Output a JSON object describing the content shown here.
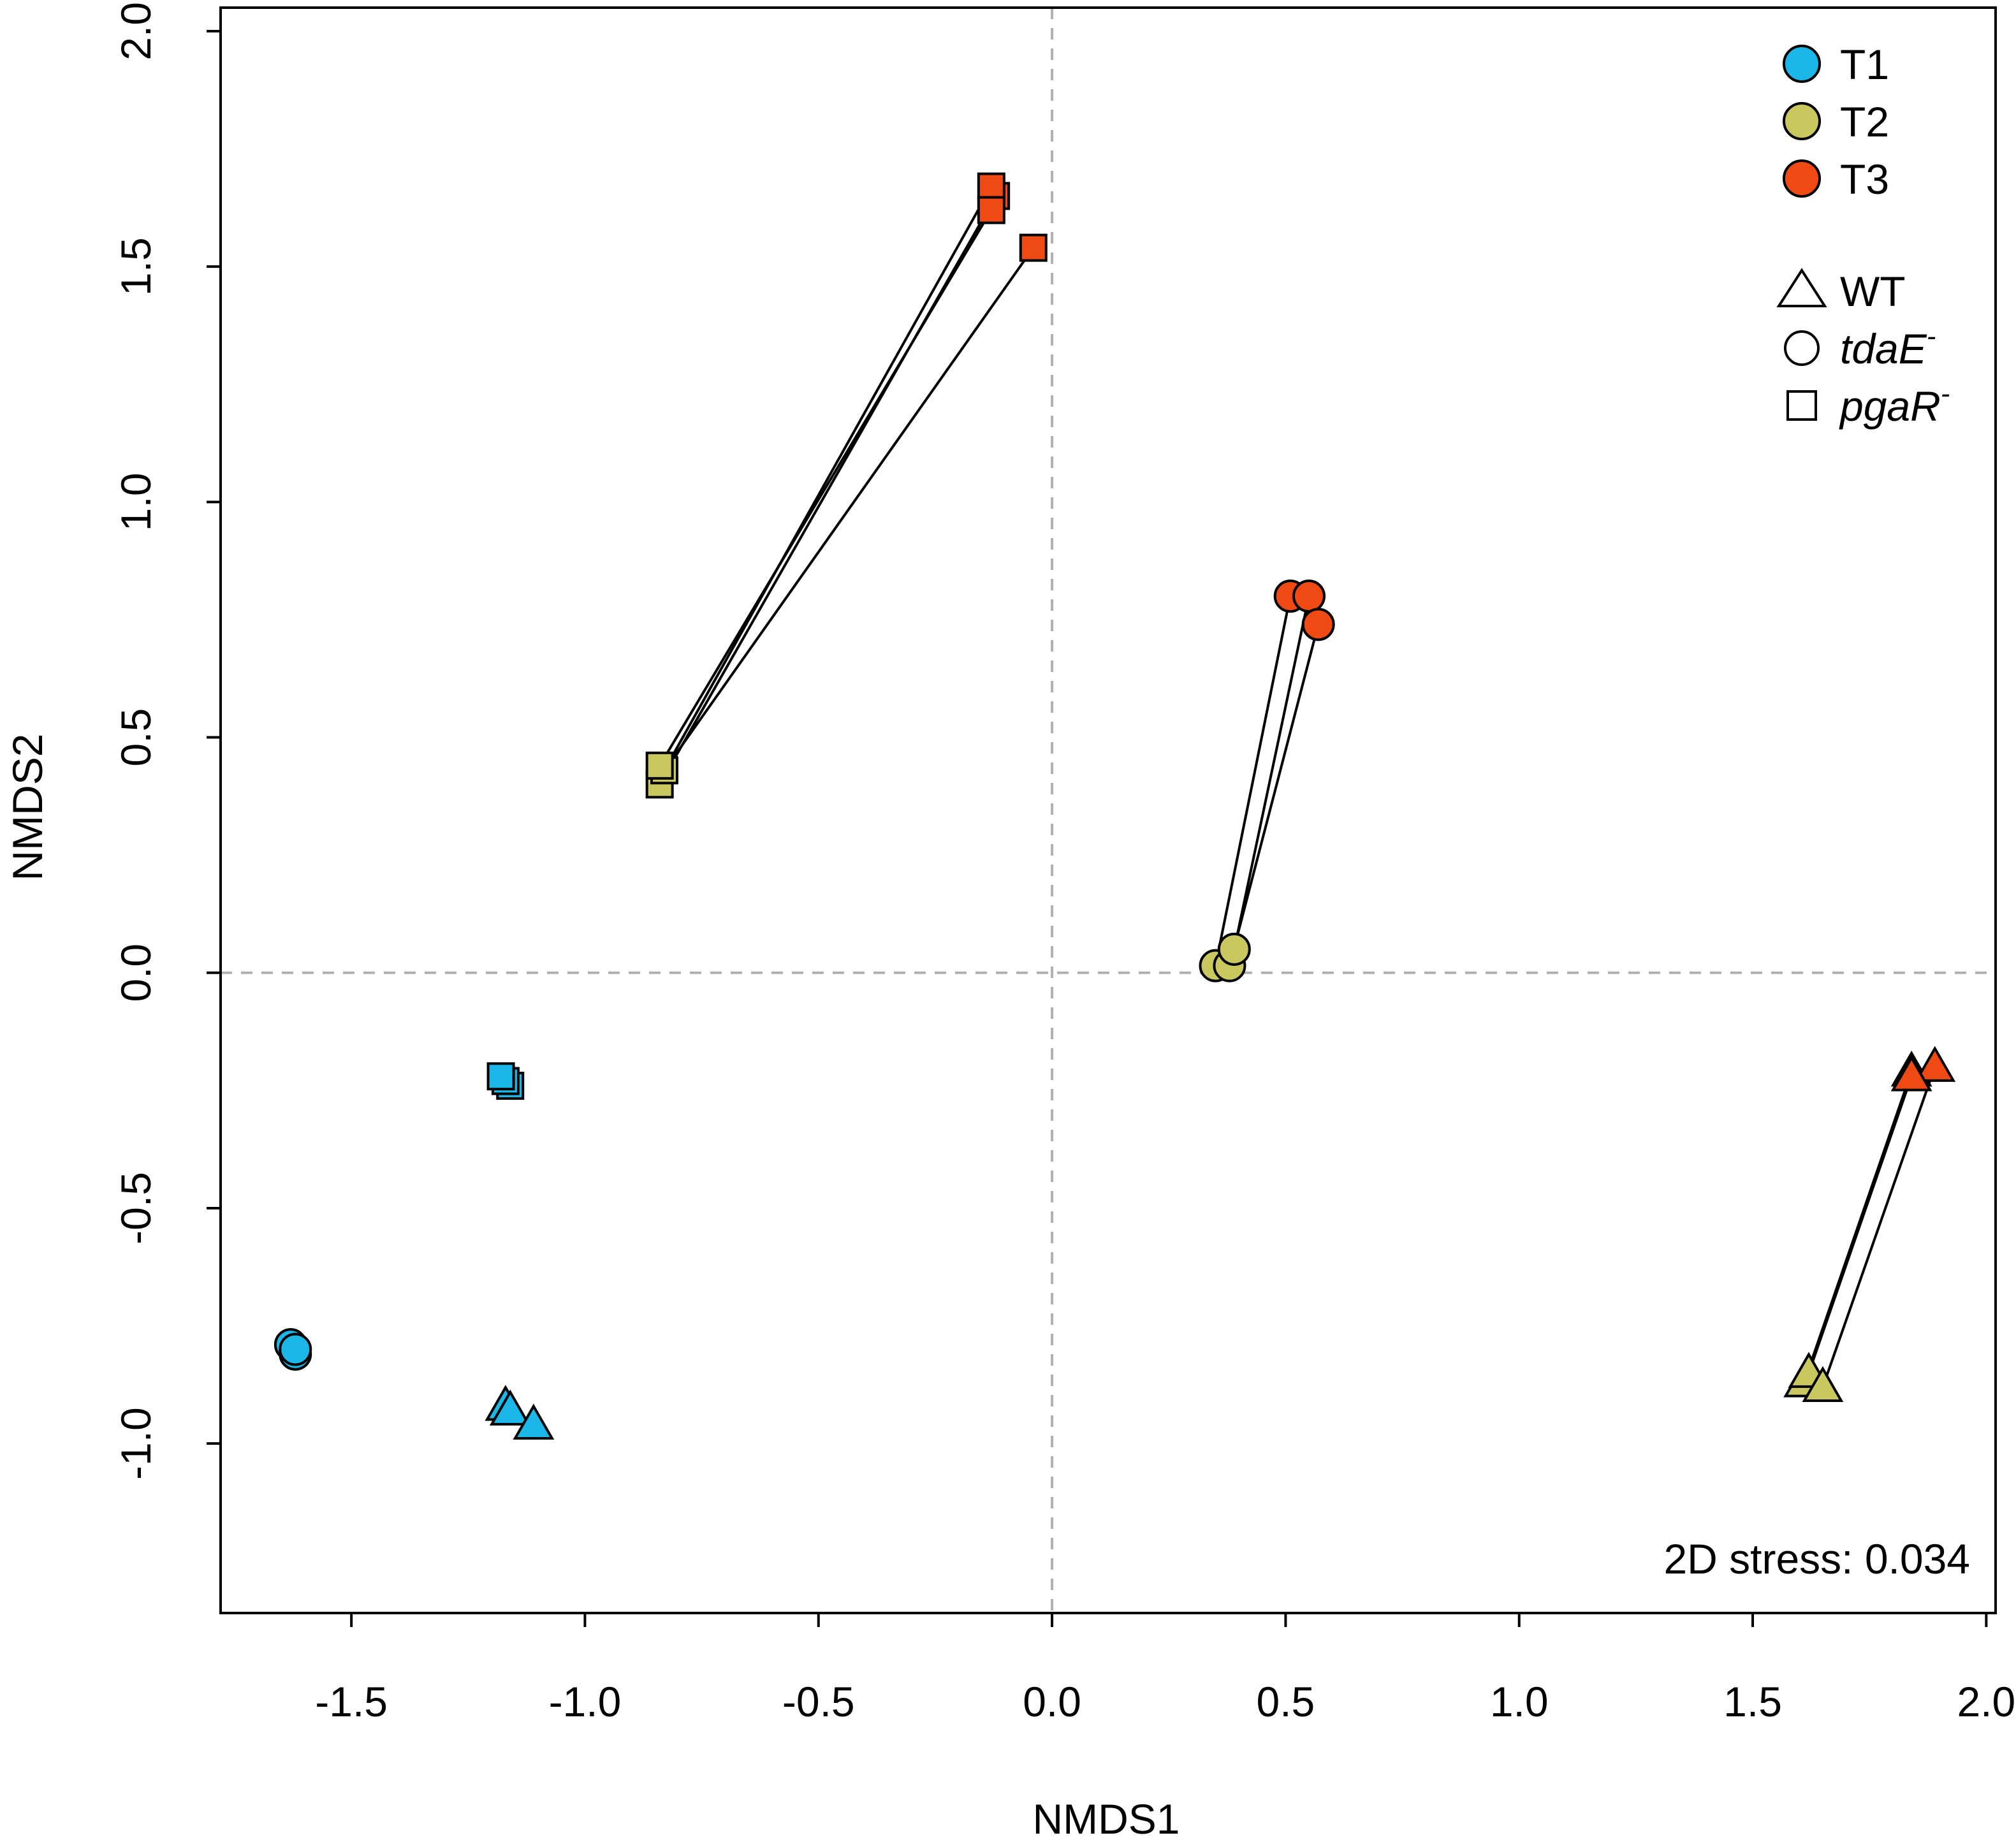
{
  "chart_data": {
    "type": "scatter",
    "title": "",
    "xlabel": "NMDS1",
    "ylabel": "NMDS2",
    "xlim": [
      -1.78,
      2.02
    ],
    "ylim": [
      -1.36,
      2.05
    ],
    "x_ticks": [
      -1.5,
      -1.0,
      -0.5,
      0.0,
      0.5,
      1.0,
      1.5,
      2.0
    ],
    "x_tick_labels": [
      "-1.5",
      "-1.0",
      "-0.5",
      "0.0",
      "0.5",
      "1.0",
      "1.5",
      "2.0"
    ],
    "y_ticks": [
      -1.0,
      -0.5,
      0.0,
      0.5,
      1.0,
      1.5,
      2.0
    ],
    "y_tick_labels": [
      "-1.0",
      "-0.5",
      "0.0",
      "0.5",
      "1.0",
      "1.5",
      "2.0"
    ],
    "reference_lines": {
      "x": 0,
      "y": 0,
      "style": "dashed",
      "color": "#b0b0b0"
    },
    "grid": false,
    "legend_position": "top-right",
    "annotation": "2D stress: 0.034",
    "time_colors": {
      "T1": "#1ab7e8",
      "T2": "#c9c75d",
      "T3": "#f04a14"
    },
    "legend_time": [
      {
        "label": "T1",
        "color": "#1ab7e8"
      },
      {
        "label": "T2",
        "color": "#c9c75d"
      },
      {
        "label": "T3",
        "color": "#f04a14"
      }
    ],
    "legend_genotype": [
      {
        "shape": "triangle",
        "label": "WT",
        "italic": false,
        "superscript": ""
      },
      {
        "shape": "circle",
        "label": "tdaE",
        "italic": true,
        "superscript": "-"
      },
      {
        "shape": "square",
        "label": "pgaR",
        "italic": true,
        "superscript": "-"
      }
    ],
    "series": [
      {
        "name": "WT T1",
        "genotype": "WT",
        "time": "T1",
        "shape": "triangle",
        "color": "#1ab7e8",
        "points": [
          [
            -1.17,
            -0.92
          ],
          [
            -1.16,
            -0.93
          ],
          [
            -1.11,
            -0.96
          ]
        ]
      },
      {
        "name": "tdaE- T1",
        "genotype": "tdaE-",
        "time": "T1",
        "shape": "circle",
        "color": "#1ab7e8",
        "points": [
          [
            -1.62,
            -0.81
          ],
          [
            -1.63,
            -0.79
          ],
          [
            -1.62,
            -0.8
          ]
        ]
      },
      {
        "name": "pgaR- T1",
        "genotype": "pgaR-",
        "time": "T1",
        "shape": "square",
        "color": "#1ab7e8",
        "points": [
          [
            -1.16,
            -0.24
          ],
          [
            -1.17,
            -0.23
          ],
          [
            -1.18,
            -0.22
          ]
        ]
      },
      {
        "name": "WT T2",
        "genotype": "WT",
        "time": "T2",
        "shape": "triangle",
        "color": "#c9c75d",
        "points": [
          [
            1.61,
            -0.87
          ],
          [
            1.62,
            -0.85
          ],
          [
            1.65,
            -0.88
          ]
        ]
      },
      {
        "name": "tdaE- T2",
        "genotype": "tdaE-",
        "time": "T2",
        "shape": "circle",
        "color": "#c9c75d",
        "points": [
          [
            0.35,
            0.015
          ],
          [
            0.38,
            0.015
          ],
          [
            0.39,
            0.05
          ]
        ]
      },
      {
        "name": "pgaR- T2",
        "genotype": "pgaR-",
        "time": "T2",
        "shape": "square",
        "color": "#c9c75d",
        "points": [
          [
            -0.84,
            0.4
          ],
          [
            -0.83,
            0.43
          ],
          [
            -0.84,
            0.44
          ]
        ]
      },
      {
        "name": "WT T3",
        "genotype": "WT",
        "time": "T3",
        "shape": "triangle",
        "color": "#f04a14",
        "points": [
          [
            1.84,
            -0.21
          ],
          [
            1.89,
            -0.2
          ],
          [
            1.84,
            -0.22
          ]
        ]
      },
      {
        "name": "tdaE- T3",
        "genotype": "tdaE-",
        "time": "T3",
        "shape": "circle",
        "color": "#f04a14",
        "points": [
          [
            0.51,
            0.8
          ],
          [
            0.55,
            0.8
          ],
          [
            0.57,
            0.74
          ]
        ]
      },
      {
        "name": "pgaR- T3",
        "genotype": "pgaR-",
        "time": "T3",
        "shape": "square",
        "color": "#f04a14",
        "points": [
          [
            -0.12,
            1.65
          ],
          [
            -0.13,
            1.67
          ],
          [
            -0.13,
            1.62
          ],
          [
            -0.04,
            1.54
          ]
        ]
      }
    ],
    "segments": [
      {
        "genotype": "WT",
        "from": [
          1.61,
          -0.87
        ],
        "to": [
          1.84,
          -0.21
        ]
      },
      {
        "genotype": "WT",
        "from": [
          1.62,
          -0.85
        ],
        "to": [
          1.84,
          -0.22
        ]
      },
      {
        "genotype": "WT",
        "from": [
          1.65,
          -0.88
        ],
        "to": [
          1.89,
          -0.2
        ]
      },
      {
        "genotype": "tdaE-",
        "from": [
          0.35,
          0.015
        ],
        "to": [
          0.51,
          0.8
        ]
      },
      {
        "genotype": "tdaE-",
        "from": [
          0.38,
          0.015
        ],
        "to": [
          0.57,
          0.74
        ]
      },
      {
        "genotype": "tdaE-",
        "from": [
          0.39,
          0.05
        ],
        "to": [
          0.55,
          0.8
        ]
      },
      {
        "genotype": "pgaR-",
        "from": [
          -0.84,
          0.4
        ],
        "to": [
          -0.12,
          1.65
        ]
      },
      {
        "genotype": "pgaR-",
        "from": [
          -0.83,
          0.43
        ],
        "to": [
          -0.13,
          1.67
        ]
      },
      {
        "genotype": "pgaR-",
        "from": [
          -0.84,
          0.44
        ],
        "to": [
          -0.13,
          1.62
        ]
      },
      {
        "genotype": "pgaR-",
        "from": [
          -0.83,
          0.43
        ],
        "to": [
          -0.04,
          1.54
        ]
      }
    ]
  }
}
